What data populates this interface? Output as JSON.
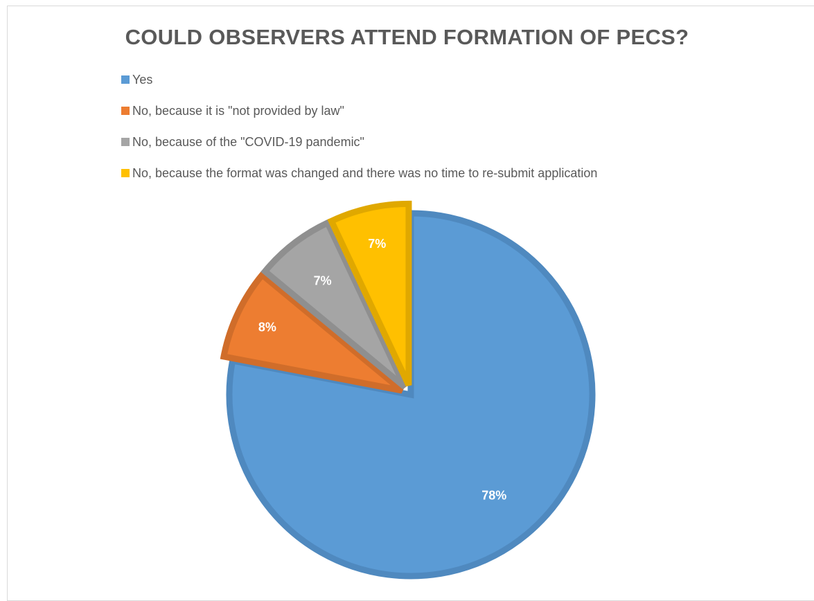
{
  "chart_data": {
    "type": "pie",
    "title": "COULD OBSERVERS ATTEND FORMATION OF PECS?",
    "categories": [
      "Yes",
      "No, because it is \"not provided by law\"",
      "No, because of the \"COVID-19 pandemic\"",
      "No, because the format was changed and there was no time to re-submit application"
    ],
    "values": [
      78,
      8,
      7,
      7
    ],
    "data_labels": [
      "78%",
      "8%",
      "7%",
      "7%"
    ],
    "colors": [
      "#5b9bd5",
      "#ed7d31",
      "#a5a5a5",
      "#ffc000"
    ],
    "border_colors": [
      "#4f89bf",
      "#d06d2a",
      "#8f8f8f",
      "#e0a800"
    ],
    "start_angle_deg": 0,
    "direction": "clockwise",
    "legend_position": "top-left"
  }
}
